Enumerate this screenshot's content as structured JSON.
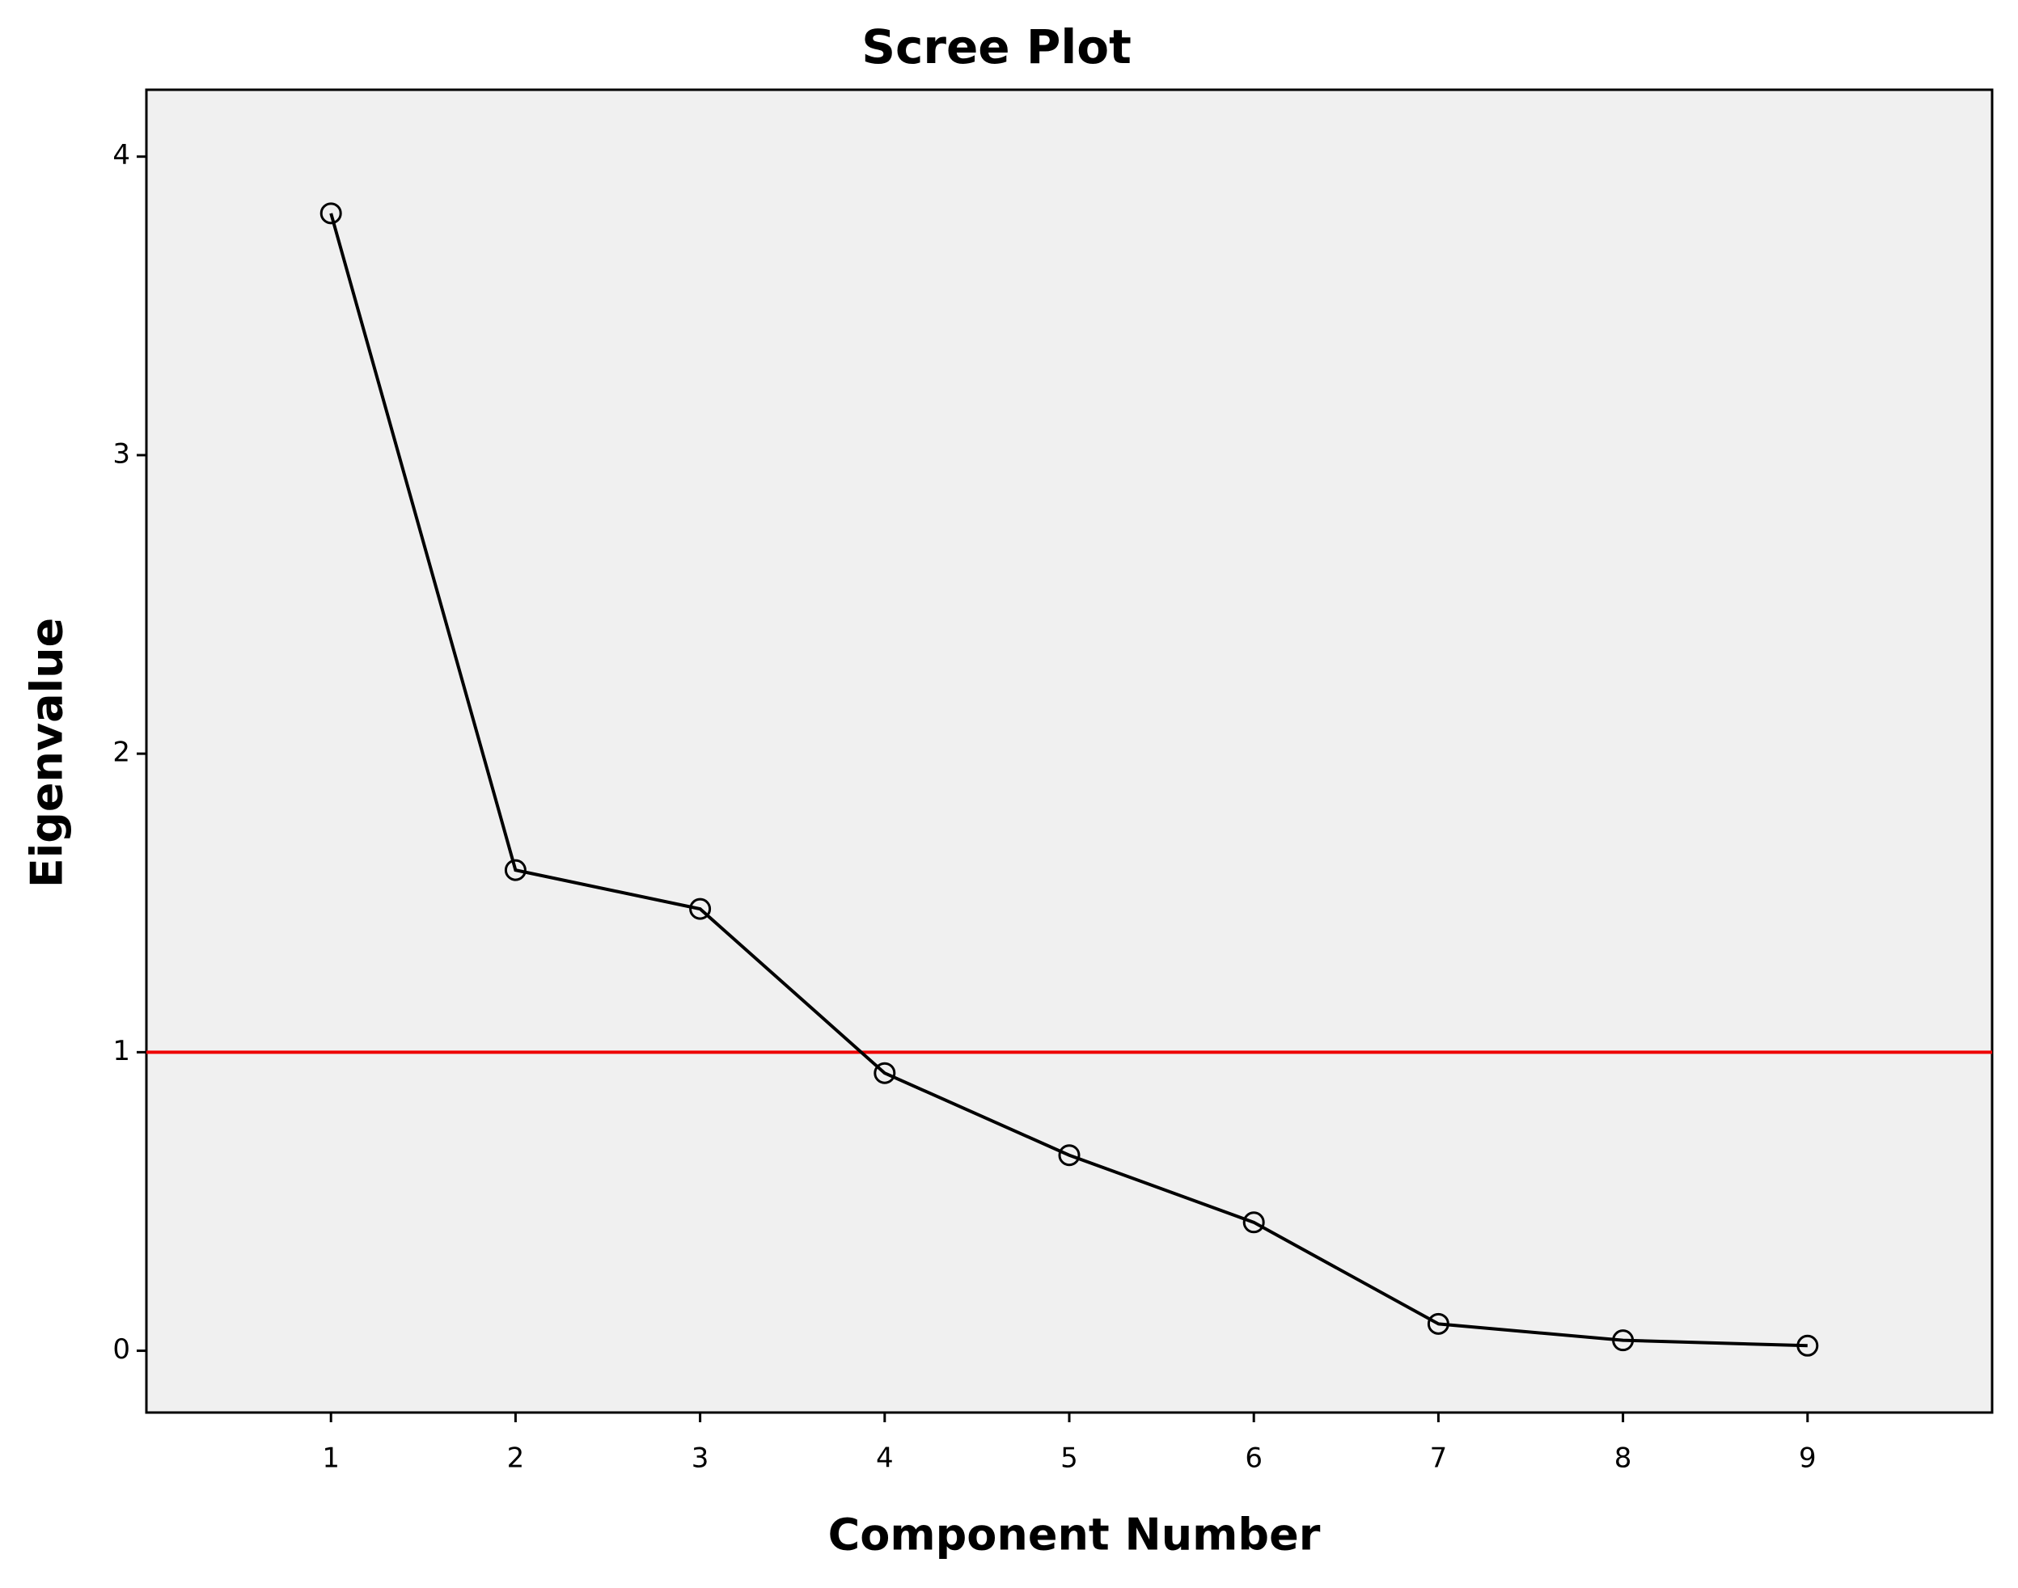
{
  "chart_data": {
    "type": "line",
    "title": "Scree Plot",
    "x_label": "Component Number",
    "y_label": "Eigenvalue",
    "x": [
      1,
      2,
      3,
      4,
      5,
      6,
      7,
      8,
      9
    ],
    "series": [
      {
        "name": "Eigenvalue",
        "color": "#000000",
        "values": [
          3.81,
          1.61,
          1.48,
          0.93,
          0.655,
          0.43,
          0.09,
          0.035,
          0.017
        ]
      }
    ],
    "xlim": [
      0,
      10
    ],
    "xticks": [
      1,
      2,
      3,
      4,
      5,
      6,
      7,
      8,
      9
    ],
    "ylim": [
      -0.207,
      4.224
    ],
    "yticks": [
      0,
      1,
      2,
      3,
      4
    ],
    "reference_line": {
      "value": 1,
      "color": "#ee0000"
    },
    "plot_background": "#f0f0f0",
    "marker": "open-circle"
  }
}
